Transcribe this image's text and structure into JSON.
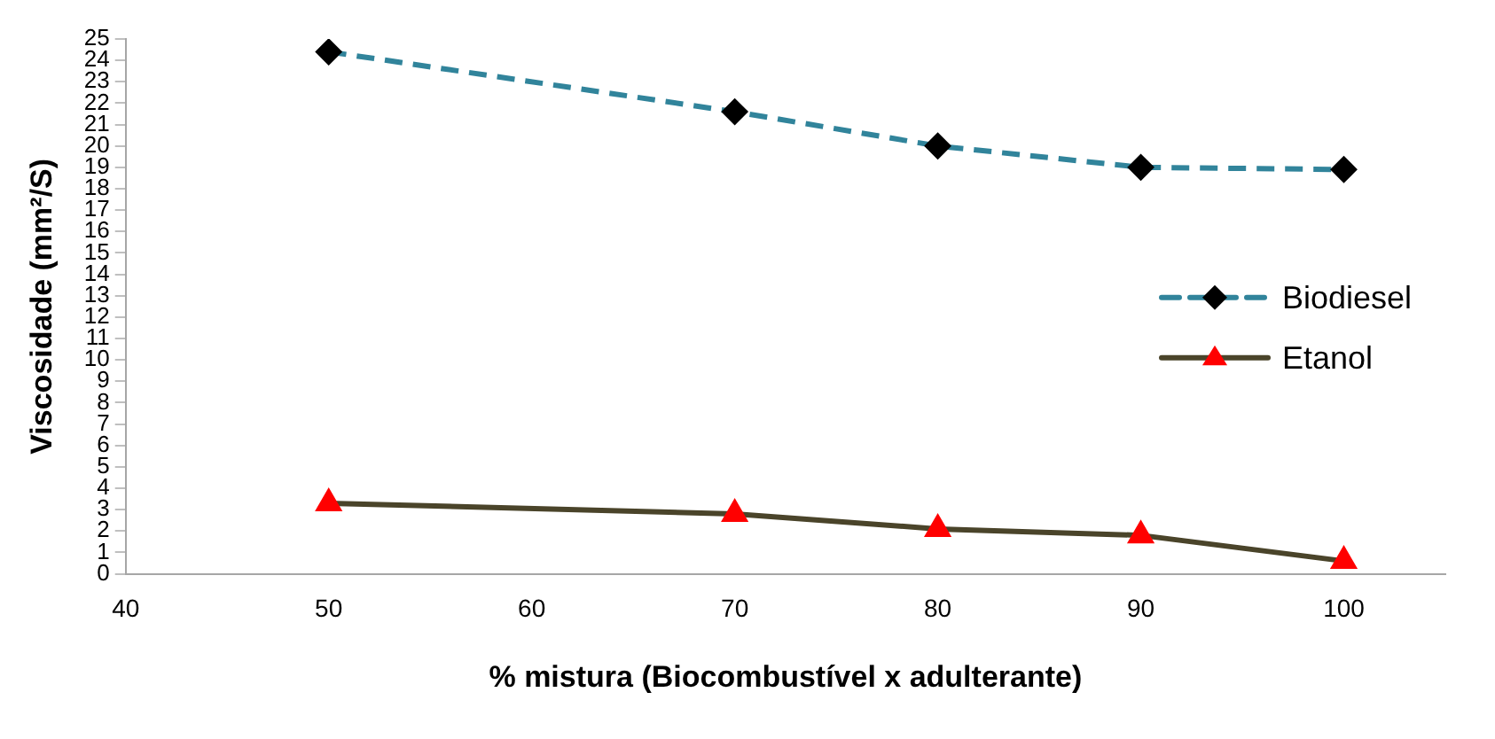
{
  "chart_data": {
    "type": "line",
    "xlabel": "% mistura (Biocombustível x adulterante)",
    "ylabel": "Viscosidade (mm²/S)",
    "x": [
      50,
      70,
      80,
      90,
      100
    ],
    "series": [
      {
        "name": "Biodiesel",
        "color": "#31849b",
        "values": [
          24.4,
          21.6,
          20.0,
          19.0,
          18.9
        ],
        "marker": "diamond",
        "line_style": "dashed"
      },
      {
        "name": "Etanol",
        "color": "#4a442a",
        "values": [
          3.3,
          2.8,
          2.1,
          1.8,
          0.6
        ],
        "marker": "triangle",
        "line_style": "solid"
      }
    ],
    "xlim": [
      40,
      105
    ],
    "xticks": [
      40,
      50,
      60,
      70,
      80,
      90,
      100
    ],
    "ylim": [
      0,
      25
    ],
    "yticks": [
      0,
      1,
      2,
      3,
      4,
      5,
      6,
      7,
      8,
      9,
      10,
      11,
      12,
      13,
      14,
      15,
      16,
      17,
      18,
      19,
      20,
      21,
      22,
      23,
      24,
      25
    ],
    "grid": false,
    "legend": "right"
  }
}
